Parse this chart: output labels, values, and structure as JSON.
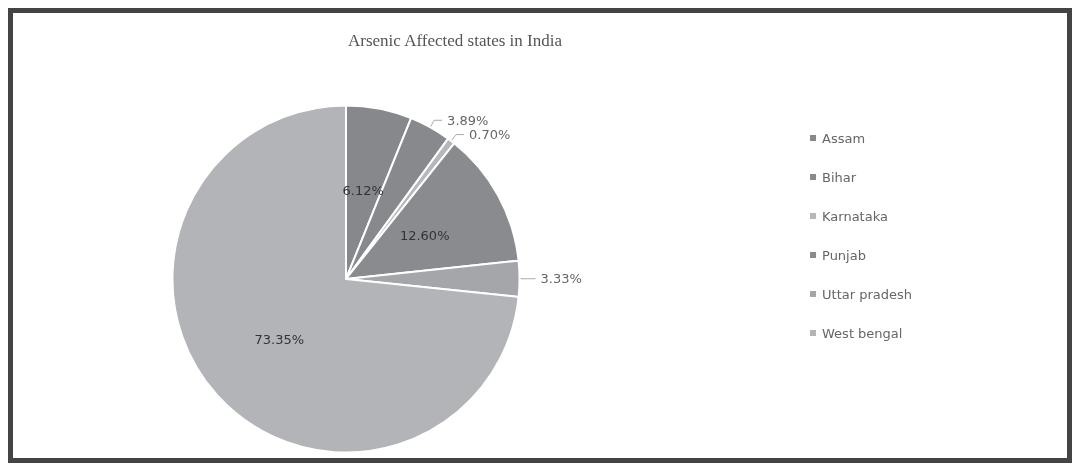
{
  "chart_data": {
    "type": "pie",
    "title": "Arsenic Affected states in India",
    "categories": [
      "Assam",
      "Bihar",
      "Karnataka",
      "Punjab",
      "Uttar pradesh",
      "West bengal"
    ],
    "values": [
      6.12,
      3.89,
      0.7,
      12.6,
      3.33,
      73.35
    ],
    "colors": [
      "#87888c",
      "#88898d",
      "#b6b7bb",
      "#8a8b8f",
      "#a5a6aa",
      "#b3b4b8"
    ],
    "value_labels": [
      "6.12%",
      "3.89%",
      "0.70%",
      "12.60%",
      "3.33%",
      "73.35%"
    ],
    "legend": "right"
  }
}
